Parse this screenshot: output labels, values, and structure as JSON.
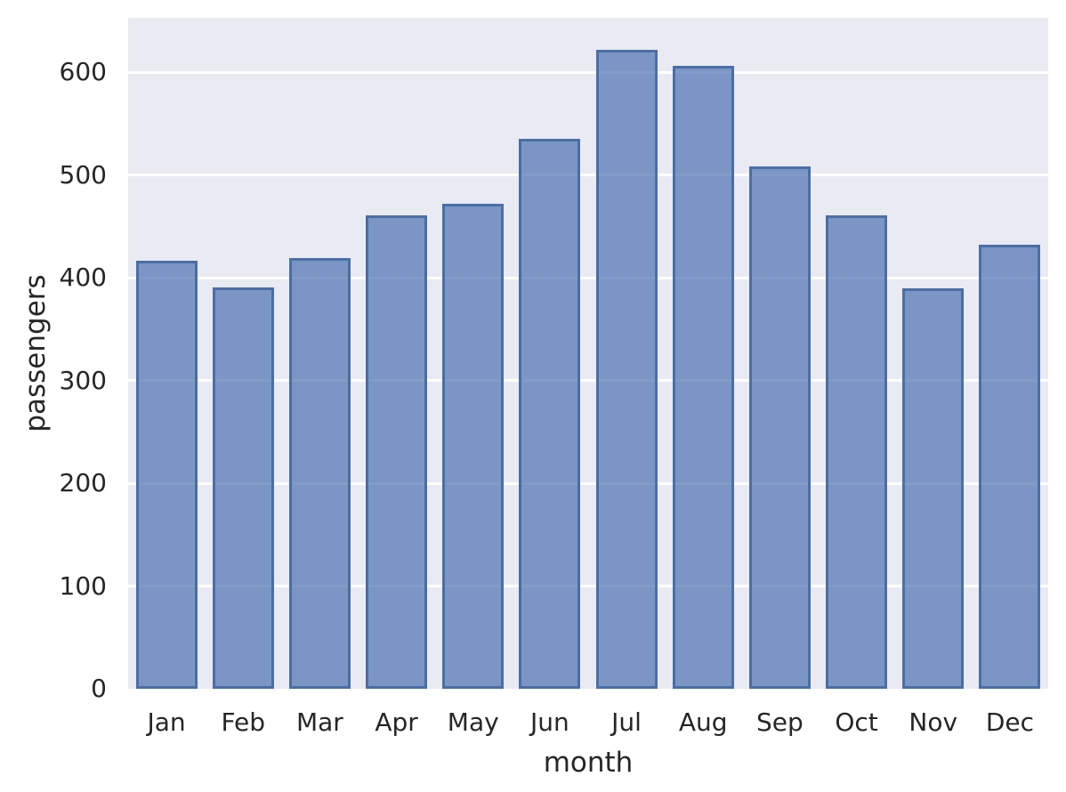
{
  "chart_data": {
    "type": "bar",
    "xlabel": "month",
    "ylabel": "passengers",
    "categories": [
      "Jan",
      "Feb",
      "Mar",
      "Apr",
      "May",
      "Jun",
      "Jul",
      "Aug",
      "Sep",
      "Oct",
      "Nov",
      "Dec"
    ],
    "values": [
      417,
      391,
      419,
      461,
      472,
      535,
      622,
      606,
      508,
      461,
      390,
      432
    ],
    "yticks": [
      0,
      100,
      200,
      300,
      400,
      500,
      600
    ],
    "ylim": [
      0,
      653
    ],
    "grid": true,
    "legend": false,
    "bar_rel_width": 0.8,
    "colors": {
      "plot_background": "#eaeaf2",
      "figure_background": "#ffffff",
      "gridline": "#ffffff",
      "bar_fill": "#4c72b0",
      "bar_fill_alpha": 0.7,
      "bar_edge": "#4a6ea6",
      "text": "#262626"
    }
  }
}
